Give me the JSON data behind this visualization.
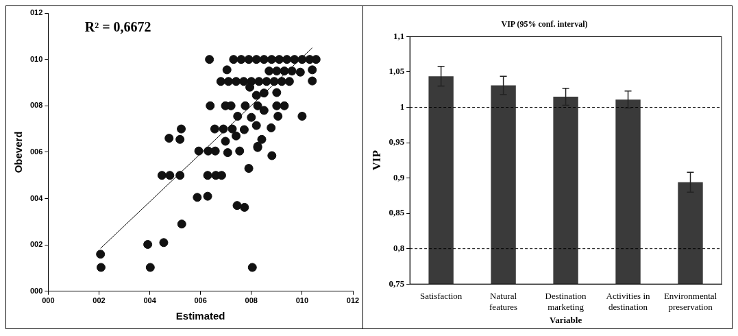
{
  "chart_data": [
    {
      "type": "scatter",
      "xlabel": "Estimated",
      "ylabel": "Obeverd",
      "annotations": [
        "R² = 0,6672"
      ],
      "xlim": [
        0,
        12
      ],
      "ylim": [
        0,
        12
      ],
      "xticks": [
        {
          "value": 0,
          "label": "000"
        },
        {
          "value": 2,
          "label": "002"
        },
        {
          "value": 4,
          "label": "004"
        },
        {
          "value": 6,
          "label": "006"
        },
        {
          "value": 8,
          "label": "008"
        },
        {
          "value": 10,
          "label": "010"
        },
        {
          "value": 12,
          "label": "012"
        }
      ],
      "yticks": [
        {
          "value": 0,
          "label": "000"
        },
        {
          "value": 2,
          "label": "002"
        },
        {
          "value": 4,
          "label": "004"
        },
        {
          "value": 6,
          "label": "006"
        },
        {
          "value": 8,
          "label": "008"
        },
        {
          "value": 10,
          "label": "010"
        },
        {
          "value": 12,
          "label": "012"
        }
      ],
      "series": [
        {
          "type": "scatter",
          "marker": "circle",
          "color": "#111111",
          "x": [
            6.35,
            7.3,
            7.6,
            7.9,
            8.2,
            8.5,
            8.8,
            9.1,
            9.4,
            9.7,
            10.0,
            10.3,
            10.55,
            7.04,
            8.7,
            9.0,
            9.3,
            9.6,
            9.93,
            10.4,
            6.8,
            7.1,
            7.4,
            7.7,
            8.0,
            8.3,
            8.6,
            8.9,
            9.2,
            9.5,
            10.4,
            7.94,
            8.2,
            8.5,
            9.0,
            6.38,
            6.98,
            7.2,
            7.76,
            8.25,
            8.5,
            9.0,
            9.3,
            7.46,
            8.0,
            9.05,
            10.0,
            6.56,
            6.9,
            7.25,
            7.72,
            8.2,
            8.78,
            5.24,
            4.76,
            5.19,
            7.4,
            6.98,
            8.41,
            8.25,
            5.93,
            6.3,
            6.58,
            7.07,
            7.54,
            8.25,
            8.81,
            7.9,
            4.48,
            4.79,
            5.19,
            6.28,
            6.6,
            6.83,
            5.87,
            6.28,
            7.44,
            7.73,
            5.26,
            3.92,
            4.55,
            2.06,
            2.08,
            4.02,
            8.04
          ],
          "values": [
            10.0,
            10.0,
            10.0,
            10.0,
            10.0,
            10.0,
            10.0,
            10.0,
            10.0,
            10.0,
            10.0,
            10.0,
            10.0,
            9.55,
            9.5,
            9.5,
            9.5,
            9.5,
            9.45,
            9.55,
            9.05,
            9.05,
            9.05,
            9.05,
            9.05,
            9.05,
            9.05,
            9.05,
            9.05,
            9.05,
            9.07,
            8.8,
            8.45,
            8.55,
            8.57,
            8.0,
            8.0,
            8.0,
            8.0,
            8.0,
            7.8,
            8.0,
            8.0,
            7.55,
            7.5,
            7.55,
            7.55,
            7.0,
            7.0,
            7.0,
            6.97,
            7.15,
            7.05,
            7.0,
            6.6,
            6.55,
            6.7,
            6.47,
            6.55,
            6.2,
            6.05,
            6.05,
            6.05,
            5.98,
            6.05,
            6.25,
            5.85,
            5.3,
            5.0,
            5.0,
            5.0,
            5.0,
            5.0,
            5.0,
            4.05,
            4.1,
            3.7,
            3.62,
            2.9,
            2.02,
            2.1,
            1.6,
            1.03,
            1.03,
            1.03
          ]
        },
        {
          "type": "line",
          "marker": "none",
          "color": "#111111",
          "x": [
            2.06,
            10.4
          ],
          "values": [
            1.85,
            10.5
          ]
        }
      ]
    },
    {
      "type": "bar",
      "title": "VIP (95% conf. interval)",
      "xlabel": "Variable",
      "ylabel": "VIP",
      "categories": [
        "Satisfaction",
        "Natural features",
        "Destination marketing",
        "Activities in destination",
        "Environmental preservation"
      ],
      "values": [
        1.044,
        1.031,
        1.015,
        1.011,
        0.894
      ],
      "errors": [
        0.014,
        0.013,
        0.012,
        0.012,
        0.014
      ],
      "color": "#3a3a3a",
      "ylim": [
        0.75,
        1.1
      ],
      "yticks": [
        {
          "value": 0.75,
          "label": "0,75"
        },
        {
          "value": 0.8,
          "label": "0,8"
        },
        {
          "value": 0.85,
          "label": "0,85"
        },
        {
          "value": 0.9,
          "label": "0,9"
        },
        {
          "value": 0.95,
          "label": "0,95"
        },
        1,
        {
          "value": 1.05,
          "label": "1,05"
        },
        {
          "value": 1.1,
          "label": "1,1"
        }
      ],
      "ref_lines": [
        {
          "axis": "y",
          "value": 1,
          "line_style": "dashed",
          "color": "#000000"
        },
        {
          "axis": "y",
          "value": 0.8,
          "line_style": "dashed",
          "color": "#000000"
        }
      ]
    }
  ]
}
